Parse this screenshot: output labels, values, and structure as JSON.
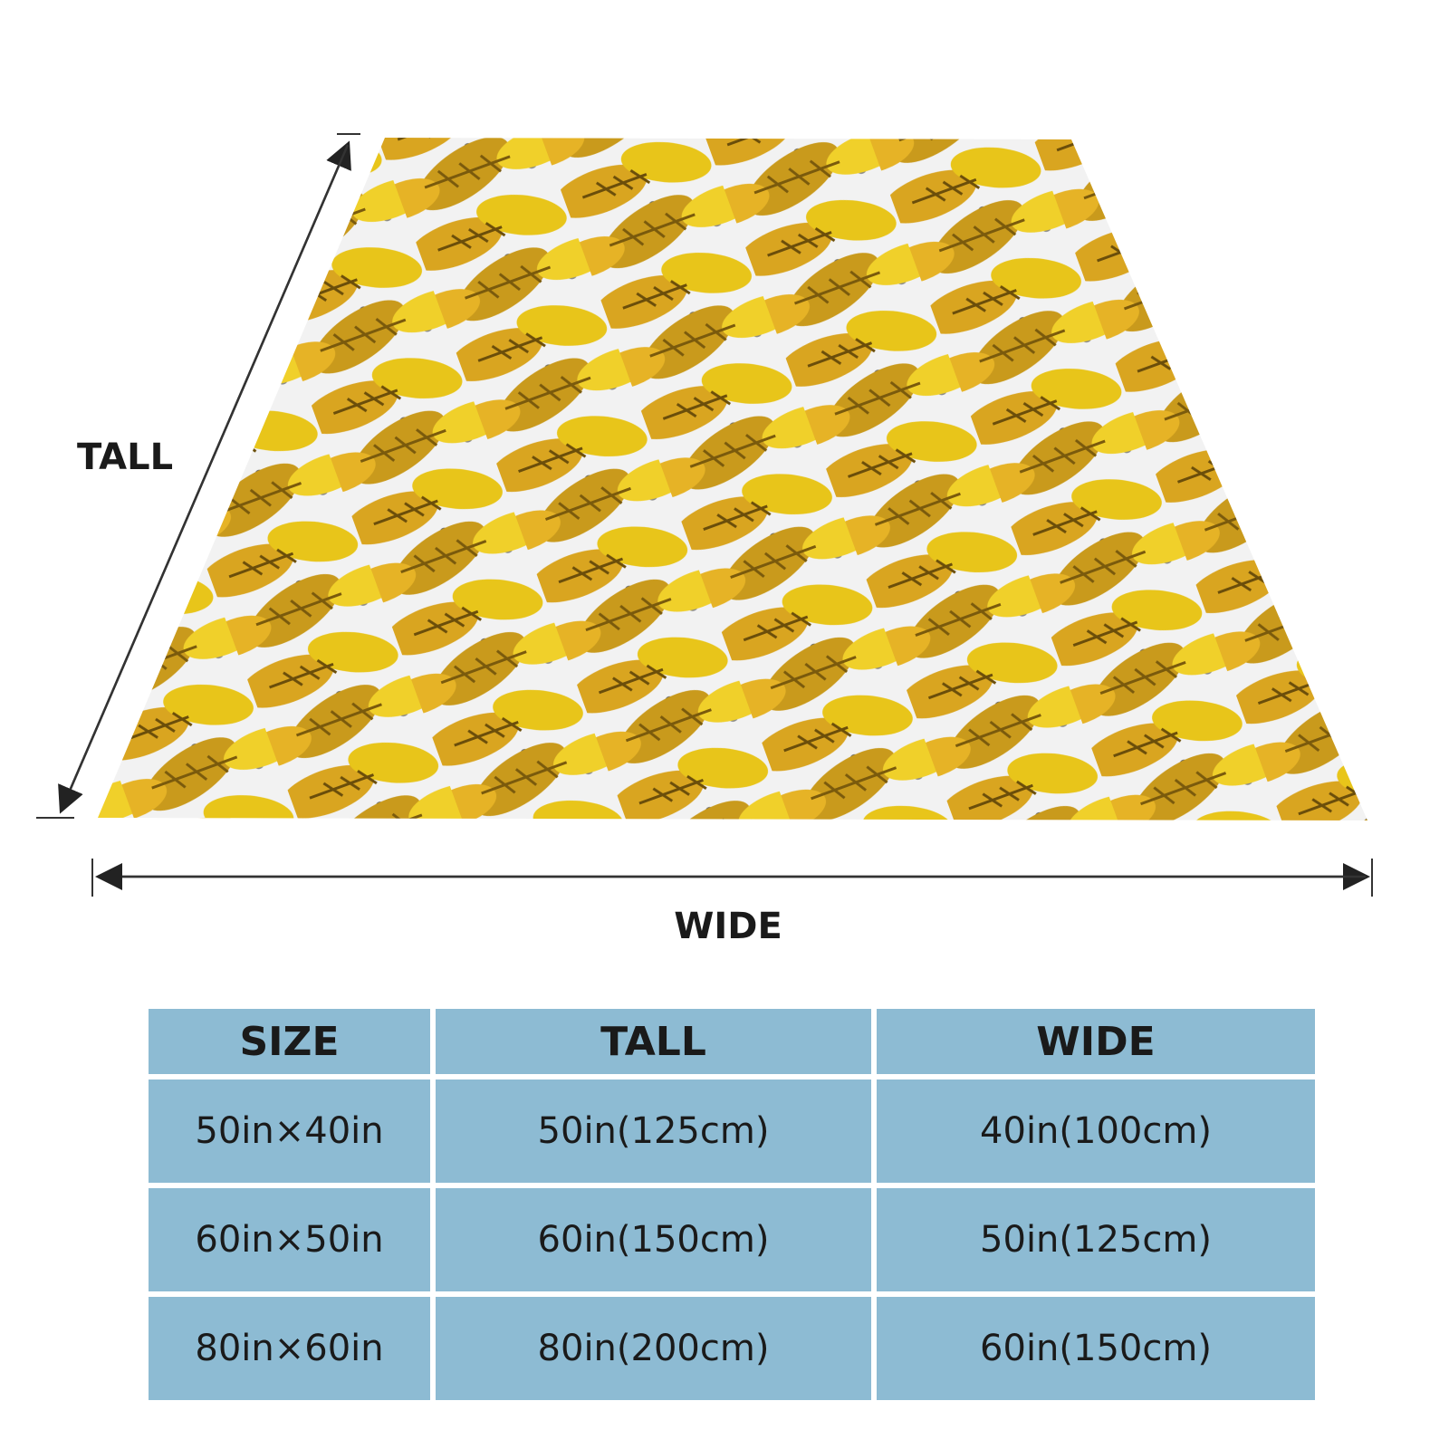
{
  "dimension_labels": {
    "tall": "TALL",
    "wide": "WIDE"
  },
  "table": {
    "header": [
      "SIZE",
      "TALL",
      "WIDE"
    ],
    "rows": [
      [
        "50in×40in",
        "50in(125cm)",
        "40in(100cm)"
      ],
      [
        "60in×50in",
        "60in(150cm)",
        "50in(125cm)"
      ],
      [
        "80in×60in",
        "80in(200cm)",
        "60in(150cm)"
      ]
    ]
  }
}
